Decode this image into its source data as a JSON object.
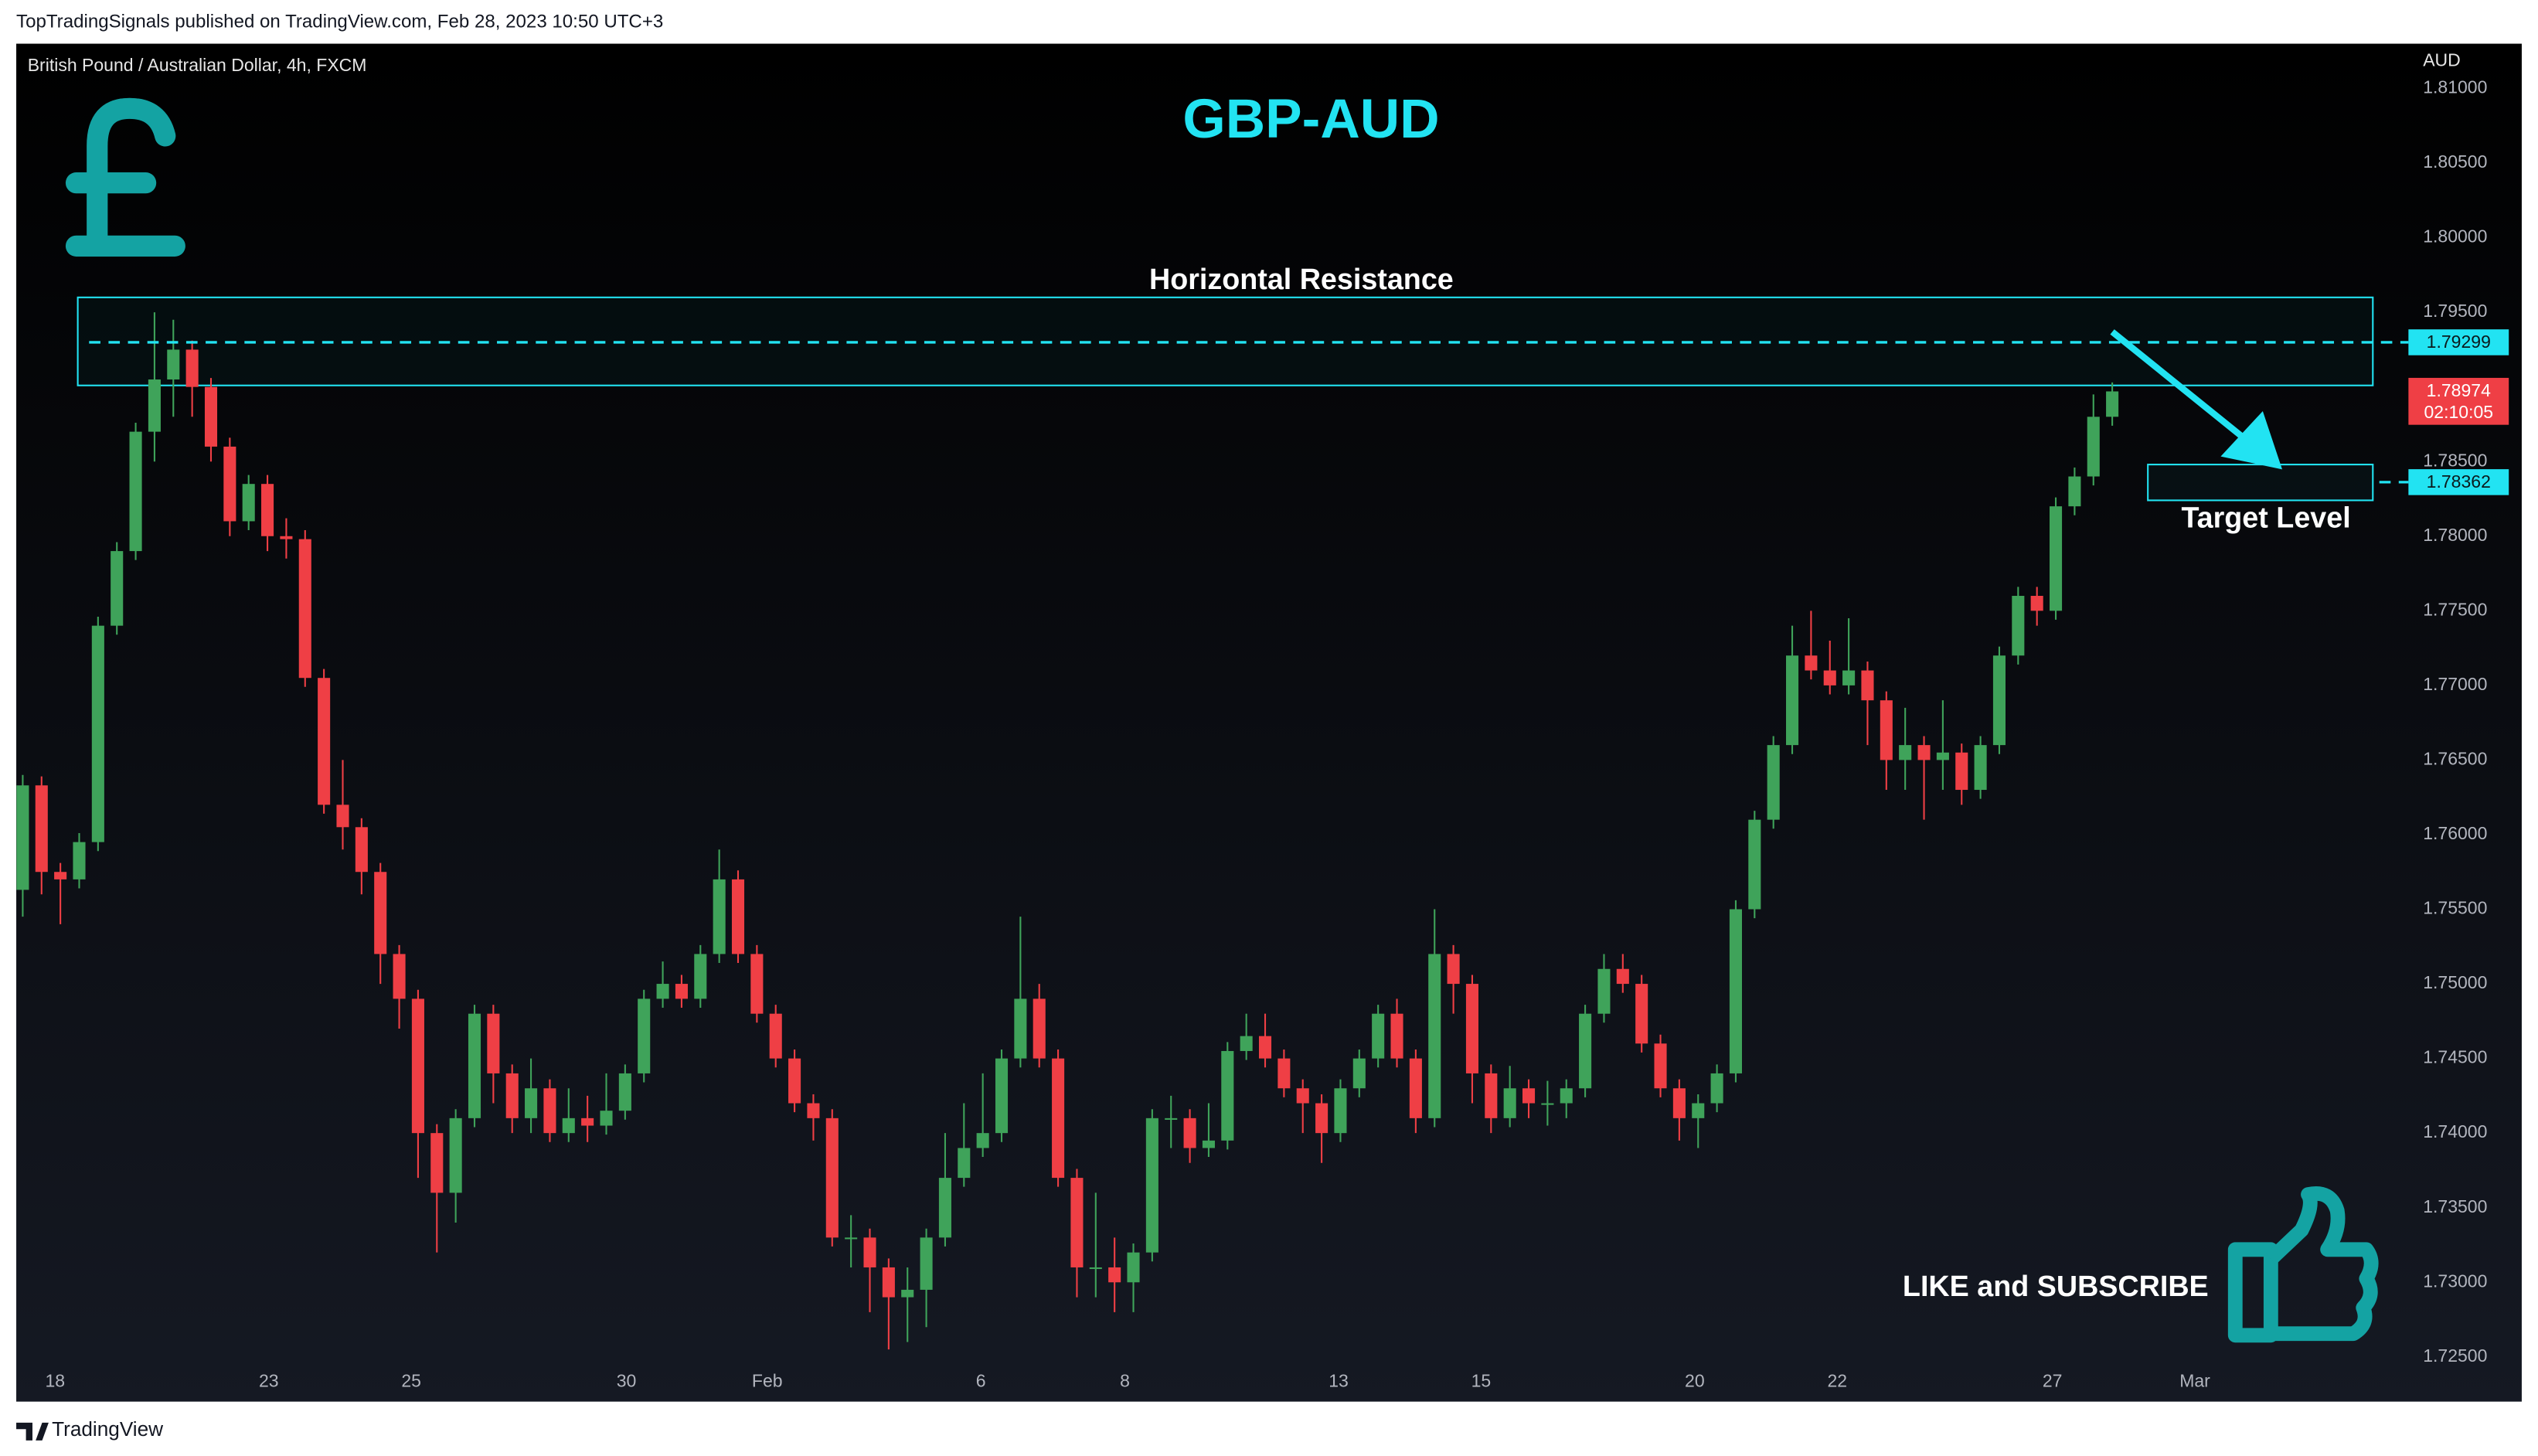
{
  "header": "TopTradingSignals published on TradingView.com, Feb 28, 2023 10:50 UTC+3",
  "footer": "TradingView",
  "chart_data": {
    "type": "candlestick",
    "title": "GBP-AUD",
    "symbol": "British Pound / Australian Dollar, 4h, FXCM",
    "currency": "AUD",
    "up_color": "#3fa35a",
    "down_color": "#ef3f45",
    "accent_color": "#22e3f2",
    "grid": false,
    "ylim": [
      1.7245,
      1.813
    ],
    "yticks": [
      {
        "value": 1.725,
        "label": "1.72500"
      },
      {
        "value": 1.73,
        "label": "1.73000"
      },
      {
        "value": 1.735,
        "label": "1.73500"
      },
      {
        "value": 1.74,
        "label": "1.74000"
      },
      {
        "value": 1.745,
        "label": "1.74500"
      },
      {
        "value": 1.75,
        "label": "1.75000"
      },
      {
        "value": 1.755,
        "label": "1.75500"
      },
      {
        "value": 1.76,
        "label": "1.76000"
      },
      {
        "value": 1.765,
        "label": "1.76500"
      },
      {
        "value": 1.77,
        "label": "1.77000"
      },
      {
        "value": 1.775,
        "label": "1.77500"
      },
      {
        "value": 1.78,
        "label": "1.78000"
      },
      {
        "value": 1.785,
        "label": "1.78500"
      },
      {
        "value": 1.79,
        "label": "1.79000"
      },
      {
        "value": 1.795,
        "label": "1.79500"
      },
      {
        "value": 1.8,
        "label": "1.80000"
      },
      {
        "value": 1.805,
        "label": "1.80500"
      },
      {
        "value": 1.81,
        "label": "1.81000"
      }
    ],
    "xticks": [
      {
        "value": 1.72,
        "label": "18"
      },
      {
        "value": 13.07,
        "label": "23"
      },
      {
        "value": 20.64,
        "label": "25"
      },
      {
        "value": 32.07,
        "label": "30"
      },
      {
        "value": 39.55,
        "label": "Feb"
      },
      {
        "value": 50.9,
        "label": "6"
      },
      {
        "value": 58.55,
        "label": "8"
      },
      {
        "value": 69.9,
        "label": "13"
      },
      {
        "value": 77.47,
        "label": "15"
      },
      {
        "value": 88.82,
        "label": "20"
      },
      {
        "value": 96.39,
        "label": "22"
      },
      {
        "value": 107.82,
        "label": "27"
      },
      {
        "value": 115.39,
        "label": "Mar"
      }
    ],
    "open": [
      1.7563,
      1.7633,
      1.7575,
      1.757,
      1.7595,
      1.774,
      1.779,
      1.787,
      1.7905,
      1.7925,
      1.79,
      1.786,
      1.781,
      1.7835,
      1.78,
      1.7798,
      1.7705,
      1.762,
      1.7605,
      1.7575,
      1.752,
      1.749,
      1.74,
      1.736,
      1.741,
      1.748,
      1.744,
      1.741,
      1.743,
      1.74,
      1.741,
      1.7405,
      1.7415,
      1.744,
      1.749,
      1.75,
      1.749,
      1.752,
      1.757,
      1.752,
      1.748,
      1.745,
      1.742,
      1.741,
      1.733,
      1.733,
      1.731,
      1.729,
      1.7295,
      1.733,
      1.737,
      1.739,
      1.74,
      1.745,
      1.749,
      1.745,
      1.737,
      1.731,
      1.731,
      1.73,
      1.732,
      1.741,
      1.741,
      1.739,
      1.7395,
      1.7455,
      1.7465,
      1.745,
      1.743,
      1.742,
      1.74,
      1.743,
      1.745,
      1.748,
      1.745,
      1.741,
      1.752,
      1.75,
      1.744,
      1.741,
      1.743,
      1.742,
      1.742,
      1.743,
      1.748,
      1.751,
      1.75,
      1.746,
      1.743,
      1.741,
      1.742,
      1.744,
      1.755,
      1.761,
      1.766,
      1.772,
      1.771,
      1.77,
      1.771,
      1.769,
      1.765,
      1.766,
      1.765,
      1.7655,
      1.763,
      1.766,
      1.772,
      1.776,
      1.775,
      1.782,
      1.784,
      1.788
    ],
    "high": [
      1.764,
      1.7639,
      1.7581,
      1.7601,
      1.7746,
      1.7796,
      1.7876,
      1.795,
      1.7945,
      1.7931,
      1.7906,
      1.7866,
      1.7841,
      1.7841,
      1.7812,
      1.7804,
      1.7711,
      1.765,
      1.7611,
      1.7581,
      1.7526,
      1.7496,
      1.7406,
      1.7416,
      1.7486,
      1.7486,
      1.7446,
      1.745,
      1.7436,
      1.743,
      1.7425,
      1.744,
      1.7446,
      1.7496,
      1.7515,
      1.7506,
      1.7526,
      1.759,
      1.7576,
      1.7526,
      1.7486,
      1.7456,
      1.7426,
      1.7416,
      1.7345,
      1.7336,
      1.7316,
      1.731,
      1.7336,
      1.74,
      1.742,
      1.744,
      1.7456,
      1.7545,
      1.75,
      1.7456,
      1.7376,
      1.736,
      1.733,
      1.7326,
      1.7416,
      1.7425,
      1.7416,
      1.742,
      1.7461,
      1.748,
      1.748,
      1.7456,
      1.7436,
      1.7426,
      1.7436,
      1.7456,
      1.7486,
      1.749,
      1.7456,
      1.755,
      1.7526,
      1.7506,
      1.7446,
      1.7445,
      1.7436,
      1.7435,
      1.7436,
      1.7486,
      1.752,
      1.752,
      1.7506,
      1.7466,
      1.7436,
      1.7426,
      1.7446,
      1.7556,
      1.7616,
      1.7666,
      1.774,
      1.775,
      1.773,
      1.7745,
      1.7716,
      1.7696,
      1.7685,
      1.7666,
      1.769,
      1.7661,
      1.7666,
      1.7726,
      1.7766,
      1.7766,
      1.7826,
      1.7846,
      1.7895,
      1.7903
    ],
    "low": [
      1.7545,
      1.756,
      1.754,
      1.7564,
      1.7589,
      1.7734,
      1.7784,
      1.785,
      1.788,
      1.788,
      1.785,
      1.78,
      1.7804,
      1.779,
      1.7785,
      1.7699,
      1.7614,
      1.759,
      1.756,
      1.75,
      1.747,
      1.737,
      1.732,
      1.734,
      1.7404,
      1.742,
      1.74,
      1.74,
      1.7394,
      1.7394,
      1.7394,
      1.7399,
      1.7409,
      1.7434,
      1.7484,
      1.7484,
      1.7484,
      1.7514,
      1.7514,
      1.7474,
      1.7444,
      1.7414,
      1.7395,
      1.7324,
      1.731,
      1.728,
      1.7255,
      1.726,
      1.727,
      1.7324,
      1.7364,
      1.7384,
      1.7394,
      1.7444,
      1.7444,
      1.7364,
      1.729,
      1.729,
      1.728,
      1.728,
      1.7314,
      1.739,
      1.738,
      1.7384,
      1.7389,
      1.7449,
      1.7444,
      1.7424,
      1.74,
      1.738,
      1.7394,
      1.7424,
      1.7444,
      1.7444,
      1.74,
      1.7404,
      1.748,
      1.742,
      1.74,
      1.7404,
      1.741,
      1.7405,
      1.741,
      1.7424,
      1.7474,
      1.7494,
      1.7454,
      1.7424,
      1.7395,
      1.739,
      1.7414,
      1.7434,
      1.7544,
      1.7604,
      1.7654,
      1.7704,
      1.7694,
      1.7694,
      1.766,
      1.763,
      1.763,
      1.761,
      1.763,
      1.762,
      1.7624,
      1.7654,
      1.7714,
      1.774,
      1.7744,
      1.7814,
      1.7834,
      1.7874
    ],
    "close": [
      1.7633,
      1.7575,
      1.757,
      1.7595,
      1.774,
      1.779,
      1.787,
      1.7905,
      1.7925,
      1.79,
      1.786,
      1.781,
      1.7835,
      1.78,
      1.7798,
      1.7705,
      1.762,
      1.7605,
      1.7575,
      1.752,
      1.749,
      1.74,
      1.736,
      1.741,
      1.748,
      1.744,
      1.741,
      1.743,
      1.74,
      1.741,
      1.7405,
      1.7415,
      1.744,
      1.749,
      1.75,
      1.749,
      1.752,
      1.757,
      1.752,
      1.748,
      1.745,
      1.742,
      1.741,
      1.733,
      1.733,
      1.731,
      1.729,
      1.7295,
      1.733,
      1.737,
      1.739,
      1.74,
      1.745,
      1.749,
      1.745,
      1.737,
      1.731,
      1.731,
      1.73,
      1.732,
      1.741,
      1.741,
      1.739,
      1.7395,
      1.7455,
      1.7465,
      1.745,
      1.743,
      1.742,
      1.74,
      1.743,
      1.745,
      1.748,
      1.745,
      1.741,
      1.752,
      1.75,
      1.744,
      1.741,
      1.743,
      1.742,
      1.742,
      1.743,
      1.748,
      1.751,
      1.75,
      1.746,
      1.743,
      1.741,
      1.742,
      1.744,
      1.755,
      1.761,
      1.766,
      1.772,
      1.771,
      1.77,
      1.771,
      1.769,
      1.765,
      1.766,
      1.765,
      1.7655,
      1.763,
      1.766,
      1.772,
      1.776,
      1.775,
      1.782,
      1.784,
      1.788,
      1.7897
    ],
    "resistance_zone": [
      1.7901,
      1.796
    ],
    "resistance_level": 1.79299,
    "target_zone": [
      1.7824,
      1.7848
    ],
    "target_level": 1.78362,
    "last_price": 1.78974,
    "countdown": "02:10:05",
    "annotations": {
      "resistance": "Horizontal Resistance",
      "target": "Target Level",
      "cta": "LIKE and SUBSCRIBE"
    }
  }
}
